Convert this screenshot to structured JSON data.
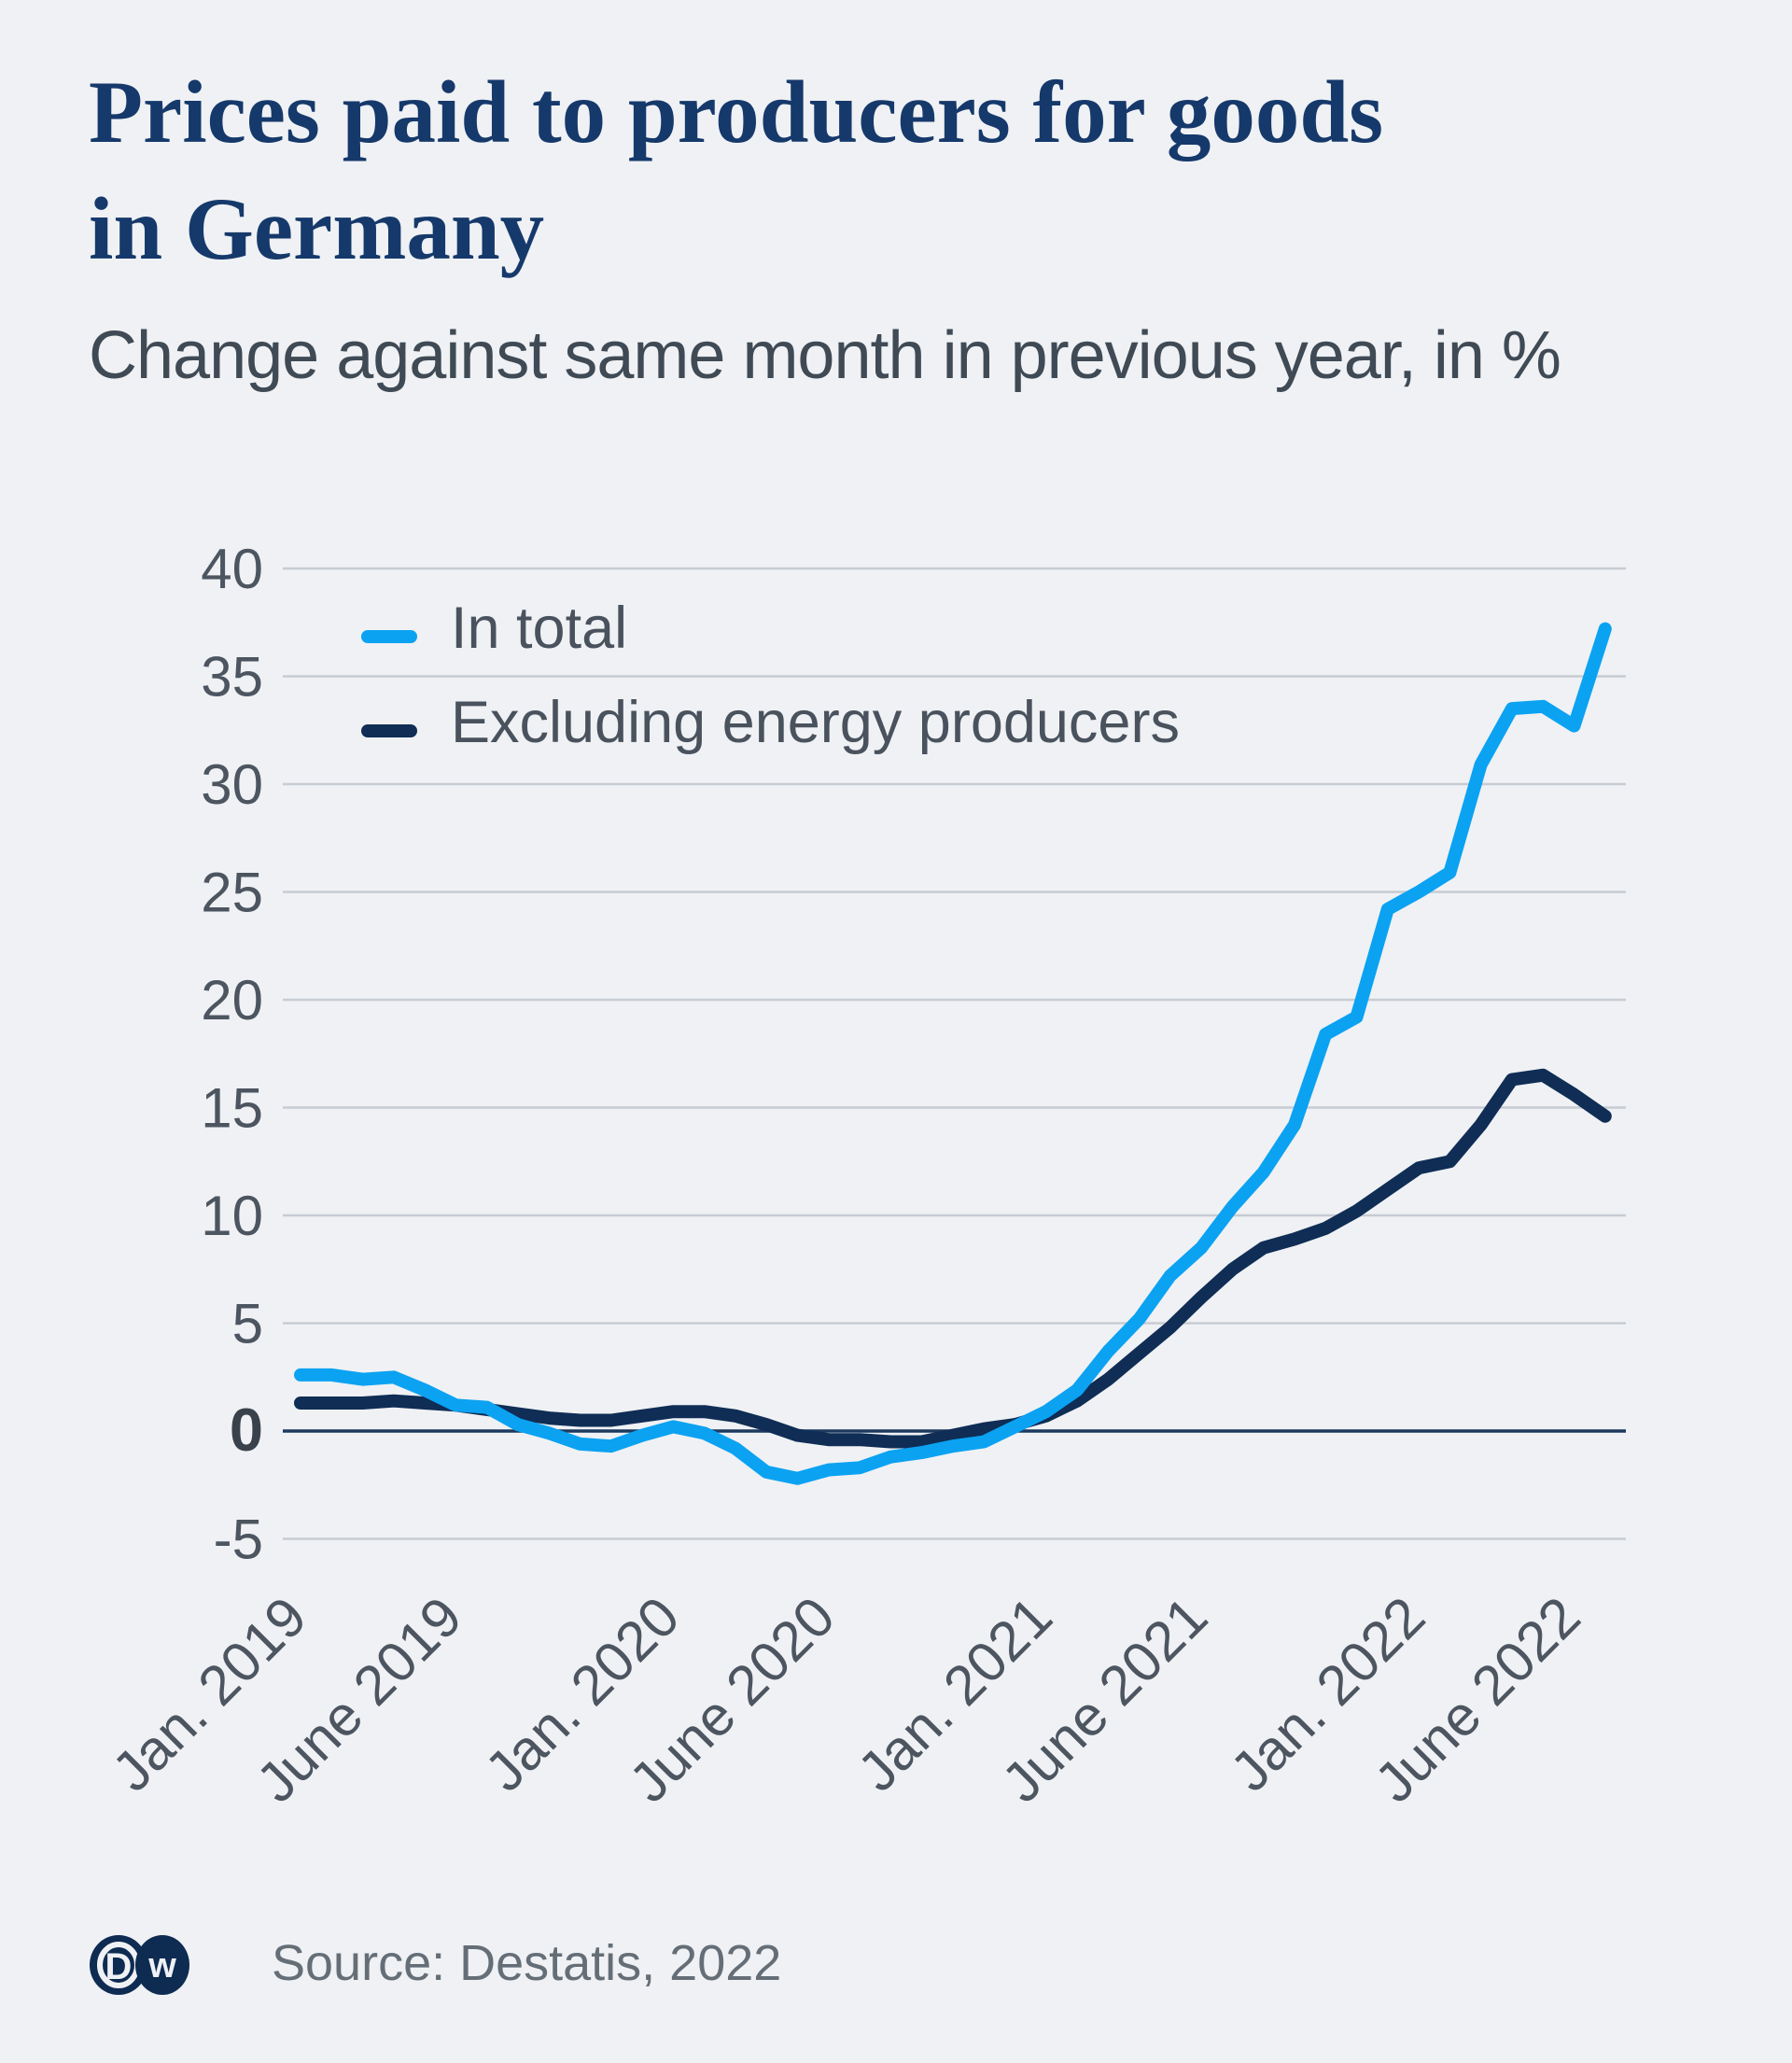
{
  "page": {
    "background": "#eff1f4"
  },
  "header": {
    "title": "Prices paid to producers for goods in Germany",
    "subtitle": "Change against same month in previous year, in %"
  },
  "footer": {
    "source": "Source: Destatis, 2022",
    "logo": {
      "left_letter": "D",
      "right_letter": "w",
      "color": "#0e2b52"
    }
  },
  "chart_data": {
    "type": "line",
    "title": "Prices paid to producers for goods in Germany",
    "subtitle": "Change against same month in previous year, in %",
    "unit": "%",
    "ylim": [
      -5,
      40
    ],
    "y_ticks": [
      40,
      35,
      30,
      25,
      20,
      15,
      10,
      5,
      0,
      -5
    ],
    "x_tick_labels": [
      "Jan. 2019",
      "June 2019",
      "Jan. 2020",
      "June 2020",
      "Jan. 2021",
      "June 2021",
      "Jan. 2022",
      "June 2022"
    ],
    "x_tick_month_indices": [
      0,
      5,
      12,
      17,
      24,
      29,
      36,
      41
    ],
    "grid_on": true,
    "grid_color": "#c7ccd3",
    "zero_line_color": "#1d3a5e",
    "axis_text_color": "#4c5560",
    "legend_position": "top-left-inside",
    "months": [
      "Jan 2019",
      "Feb 2019",
      "March 2019",
      "April 2019",
      "May 2019",
      "June 2019",
      "July 2019",
      "Aug 2019",
      "Sept 2019",
      "Oct 2019",
      "Nov 2019",
      "Dec 2019",
      "Jan 2020",
      "Feb 2020",
      "March 2020",
      "April 2020",
      "May 2020",
      "June 2020",
      "July 2020",
      "Aug 2020",
      "Sept 2020",
      "Oct 2020",
      "Nov 2020",
      "Dec 2020",
      "Jan 2021",
      "Feb 2021",
      "March 2021",
      "April 2021",
      "May 2021",
      "June 2021",
      "July 2021",
      "Aug 2021",
      "Sept 2021",
      "Oct 2021",
      "Nov 2021",
      "Dec 2021",
      "Jan 2022",
      "Feb 2022",
      "March 2022",
      "April 2022",
      "May 2022",
      "June 2022",
      "July 2022"
    ],
    "series": [
      {
        "name": "In total",
        "color": "#0ba2f2",
        "values": [
          2.6,
          2.6,
          2.4,
          2.5,
          1.9,
          1.2,
          1.1,
          0.3,
          -0.1,
          -0.6,
          -0.7,
          -0.2,
          0.2,
          -0.1,
          -0.8,
          -1.9,
          -2.2,
          -1.8,
          -1.7,
          -1.2,
          -1.0,
          -0.7,
          -0.5,
          0.2,
          0.9,
          1.9,
          3.7,
          5.2,
          7.2,
          8.5,
          10.4,
          12.0,
          14.2,
          18.4,
          19.2,
          24.2,
          25.0,
          25.9,
          30.9,
          33.5,
          33.6,
          32.7,
          37.2
        ]
      },
      {
        "name": "Excluding energy producers",
        "color": "#0f2d55",
        "values": [
          1.3,
          1.3,
          1.3,
          1.4,
          1.3,
          1.2,
          1.0,
          0.8,
          0.6,
          0.5,
          0.5,
          0.7,
          0.9,
          0.9,
          0.7,
          0.3,
          -0.2,
          -0.4,
          -0.4,
          -0.5,
          -0.5,
          -0.2,
          0.1,
          0.3,
          0.7,
          1.4,
          2.4,
          3.6,
          4.8,
          6.2,
          7.5,
          8.5,
          8.9,
          9.4,
          10.2,
          11.2,
          12.2,
          12.5,
          14.2,
          16.3,
          16.5,
          15.6,
          14.6
        ]
      }
    ]
  }
}
